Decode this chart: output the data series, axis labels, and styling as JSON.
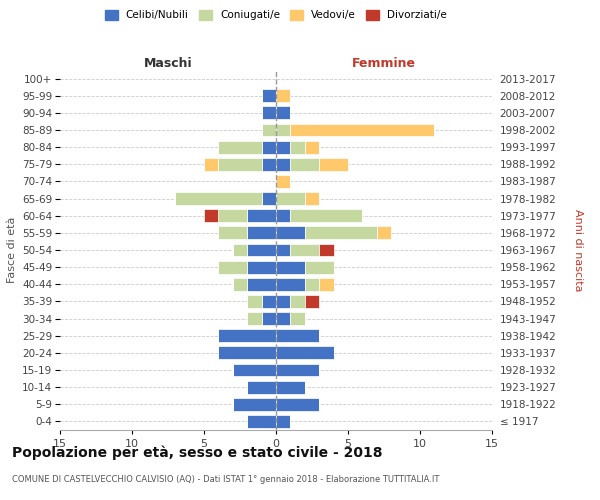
{
  "age_groups": [
    "100+",
    "95-99",
    "90-94",
    "85-89",
    "80-84",
    "75-79",
    "70-74",
    "65-69",
    "60-64",
    "55-59",
    "50-54",
    "45-49",
    "40-44",
    "35-39",
    "30-34",
    "25-29",
    "20-24",
    "15-19",
    "10-14",
    "5-9",
    "0-4"
  ],
  "birth_years": [
    "≤ 1917",
    "1918-1922",
    "1923-1927",
    "1928-1932",
    "1933-1937",
    "1938-1942",
    "1943-1947",
    "1948-1952",
    "1953-1957",
    "1958-1962",
    "1963-1967",
    "1968-1972",
    "1973-1977",
    "1978-1982",
    "1983-1987",
    "1988-1992",
    "1993-1997",
    "1998-2002",
    "2003-2007",
    "2008-2012",
    "2013-2017"
  ],
  "colors": {
    "celibi": "#4472c4",
    "coniugati": "#c5d8a0",
    "vedovi": "#ffc86b",
    "divorziati": "#c0392b"
  },
  "maschi": {
    "celibi": [
      0,
      1,
      1,
      0,
      1,
      1,
      0,
      1,
      2,
      2,
      2,
      2,
      2,
      1,
      1,
      4,
      4,
      3,
      2,
      3,
      2
    ],
    "coniugati": [
      0,
      0,
      0,
      1,
      3,
      3,
      0,
      6,
      2,
      2,
      1,
      2,
      1,
      1,
      1,
      0,
      0,
      0,
      0,
      0,
      0
    ],
    "vedovi": [
      0,
      0,
      0,
      0,
      0,
      1,
      0,
      0,
      0,
      0,
      0,
      0,
      0,
      0,
      0,
      0,
      0,
      0,
      0,
      0,
      0
    ],
    "divorziati": [
      0,
      0,
      0,
      0,
      0,
      0,
      0,
      0,
      1,
      0,
      0,
      0,
      0,
      0,
      0,
      0,
      0,
      0,
      0,
      0,
      0
    ]
  },
  "femmine": {
    "celibi": [
      0,
      0,
      1,
      0,
      1,
      1,
      0,
      0,
      1,
      2,
      1,
      2,
      2,
      1,
      1,
      3,
      4,
      3,
      2,
      3,
      1
    ],
    "coniugati": [
      0,
      0,
      0,
      1,
      1,
      2,
      0,
      2,
      5,
      5,
      2,
      2,
      1,
      1,
      1,
      0,
      0,
      0,
      0,
      0,
      0
    ],
    "vedovi": [
      0,
      1,
      0,
      10,
      1,
      2,
      1,
      1,
      0,
      1,
      0,
      0,
      1,
      0,
      0,
      0,
      0,
      0,
      0,
      0,
      0
    ],
    "divorziati": [
      0,
      0,
      0,
      0,
      0,
      0,
      0,
      0,
      0,
      0,
      1,
      0,
      0,
      1,
      0,
      0,
      0,
      0,
      0,
      0,
      0
    ]
  },
  "xlim": 15,
  "title": "Popolazione per età, sesso e stato civile - 2018",
  "subtitle": "COMUNE DI CASTELVECCHIO CALVISIO (AQ) - Dati ISTAT 1° gennaio 2018 - Elaborazione TUTTITALIA.IT",
  "xlabel_left": "Maschi",
  "xlabel_right": "Femmine",
  "ylabel_left": "Fasce di età",
  "ylabel_right": "Anni di nascita",
  "legend_labels": [
    "Celibi/Nubili",
    "Coniugati/e",
    "Vedovi/e",
    "Divorziati/e"
  ],
  "background": "#ffffff",
  "grid_color": "#cccccc"
}
